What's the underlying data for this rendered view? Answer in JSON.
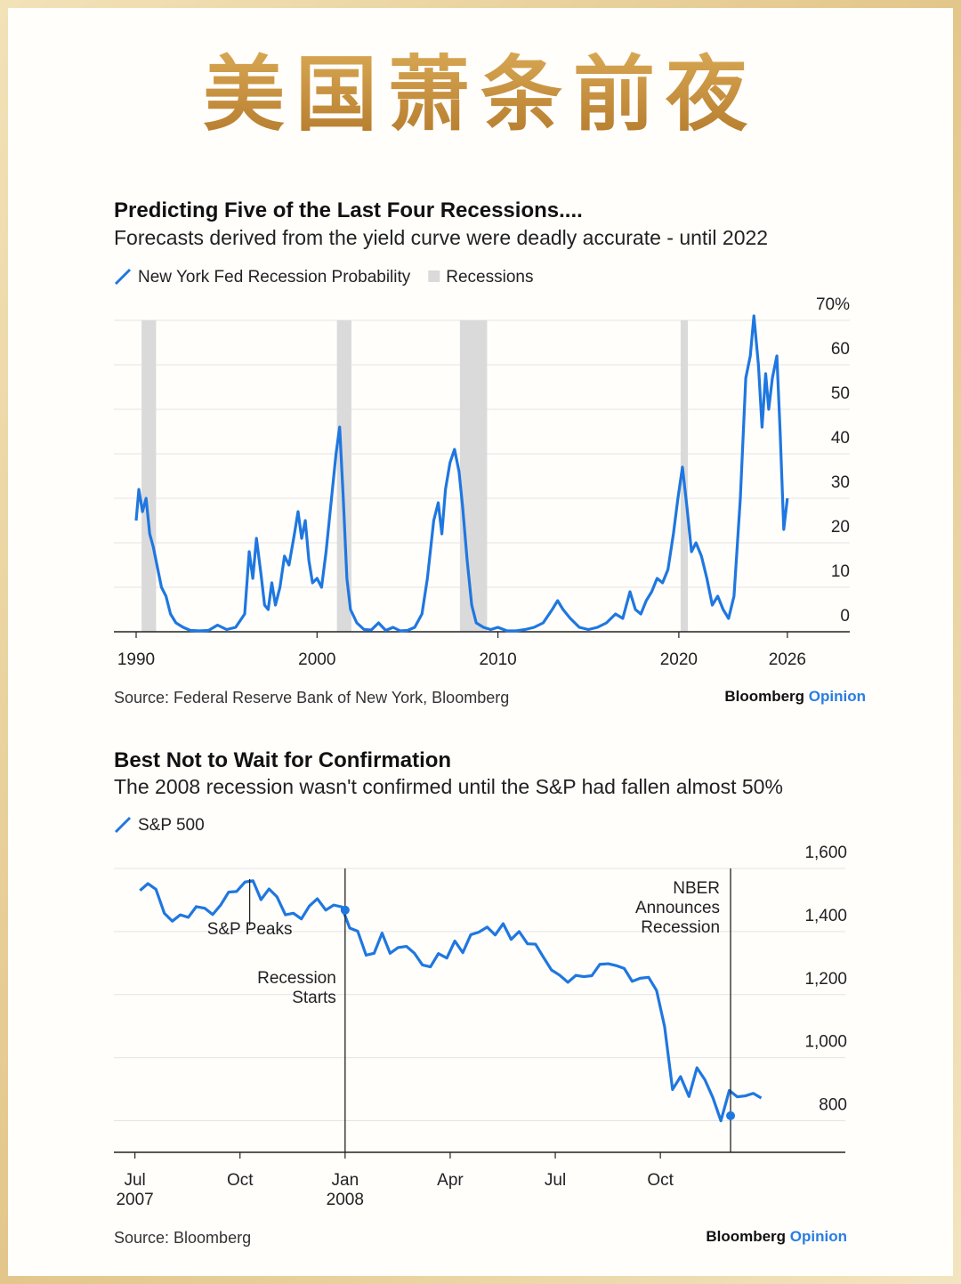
{
  "title": "美国萧条前夜",
  "chart_data": [
    {
      "type": "line",
      "title": "Predicting Five of the Last Four Recessions....",
      "subtitle": "Forecasts derived from the yield curve were deadly accurate - until 2022",
      "x": [
        1990.0,
        1990.15,
        1990.35,
        1990.55,
        1990.75,
        1990.95,
        1991.15,
        1991.4,
        1991.65,
        1991.9,
        1992.2,
        1992.6,
        1993.0,
        1993.5,
        1994.0,
        1994.5,
        1995.0,
        1995.5,
        1996.0,
        1996.25,
        1996.45,
        1996.65,
        1996.9,
        1997.1,
        1997.3,
        1997.5,
        1997.7,
        1997.95,
        1998.2,
        1998.45,
        1998.75,
        1998.95,
        1999.15,
        1999.35,
        1999.55,
        1999.75,
        2000.0,
        2000.25,
        2000.5,
        2000.8,
        2001.05,
        2001.25,
        2001.45,
        2001.65,
        2001.85,
        2002.2,
        2002.6,
        2003.0,
        2003.4,
        2003.8,
        2004.2,
        2004.6,
        2005.0,
        2005.4,
        2005.8,
        2006.1,
        2006.45,
        2006.7,
        2006.9,
        2007.1,
        2007.35,
        2007.6,
        2007.85,
        2008.05,
        2008.3,
        2008.55,
        2008.8,
        2009.2,
        2009.6,
        2010.0,
        2010.5,
        2011.0,
        2011.5,
        2012.0,
        2012.5,
        2013.0,
        2013.3,
        2013.6,
        2014.0,
        2014.5,
        2015.0,
        2015.5,
        2016.0,
        2016.5,
        2016.9,
        2017.3,
        2017.6,
        2017.9,
        2018.2,
        2018.5,
        2018.8,
        2019.1,
        2019.4,
        2019.7,
        2019.95,
        2020.2,
        2020.45,
        2020.7,
        2020.95,
        2021.25,
        2021.55,
        2021.85,
        2022.15,
        2022.45,
        2022.75,
        2023.05,
        2023.4,
        2023.7,
        2023.95,
        2024.15,
        2024.4,
        2024.6,
        2024.8,
        2024.97,
        2025.17,
        2025.42,
        2025.6,
        2025.8,
        2026.0
      ],
      "series": [
        {
          "name": "New York Fed Recession Probability",
          "color": "#1f77e0",
          "values": [
            25,
            32,
            27,
            30,
            22,
            19,
            15,
            10,
            8,
            4,
            2,
            1,
            0.3,
            0.2,
            0.3,
            1.5,
            0.5,
            1,
            4,
            18,
            12,
            21,
            13,
            6,
            5,
            11,
            6,
            10,
            17,
            15,
            22,
            27,
            21,
            25,
            16,
            11,
            12,
            10,
            18,
            30,
            40,
            46,
            30,
            12,
            5,
            2,
            0.5,
            0.4,
            2,
            0.3,
            1,
            0.2,
            0.3,
            1,
            4,
            12,
            25,
            29,
            22,
            32,
            38,
            41,
            36,
            28,
            16,
            6,
            2,
            1,
            0.5,
            1,
            0.2,
            0.2,
            0.5,
            1,
            2,
            5,
            7,
            5,
            3,
            1,
            0.5,
            1,
            2,
            4,
            3,
            9,
            5,
            4,
            7,
            9,
            12,
            11,
            14,
            22,
            30,
            37,
            28,
            18,
            20,
            17,
            12,
            6,
            8,
            5,
            3,
            8,
            30,
            57,
            62,
            71,
            60,
            46,
            58,
            50,
            57,
            62,
            45,
            23,
            30
          ]
        }
      ],
      "shaded_ranges": {
        "name": "Recessions",
        "color": "#dadada",
        "ranges": [
          [
            1990.3,
            1991.1
          ],
          [
            2001.1,
            2001.9
          ],
          [
            2007.9,
            2009.4
          ],
          [
            2020.1,
            2020.5
          ]
        ]
      },
      "xlim": [
        1988.77,
        2029.45
      ],
      "xticks": [
        1990,
        2000,
        2010,
        2020,
        2026
      ],
      "ylim": [
        0,
        70
      ],
      "yticks": [
        0,
        10,
        20,
        30,
        40,
        50,
        60,
        {
          "value": 70,
          "label": "70%"
        }
      ],
      "grid": true,
      "source": "Source: Federal Reserve Bank of New York, Bloomberg",
      "brand": {
        "name": "Bloomberg",
        "section": "Opinion"
      }
    },
    {
      "type": "line",
      "title": "Best Not to Wait for Confirmation",
      "subtitle": "The 2008 recession wasn't confirmed until the S&P had fallen almost 50%",
      "x": [
        2007.512,
        2007.531,
        2007.55,
        2007.57,
        2007.589,
        2007.608,
        2007.627,
        2007.646,
        2007.666,
        2007.685,
        2007.704,
        2007.723,
        2007.742,
        2007.762,
        2007.781,
        2007.8,
        2007.819,
        2007.838,
        2007.858,
        2007.877,
        2007.896,
        2007.915,
        2007.934,
        2007.954,
        2007.973,
        2007.992,
        2008.011,
        2008.03,
        2008.05,
        2008.069,
        2008.088,
        2008.107,
        2008.126,
        2008.146,
        2008.165,
        2008.184,
        2008.203,
        2008.222,
        2008.242,
        2008.261,
        2008.28,
        2008.299,
        2008.318,
        2008.338,
        2008.357,
        2008.376,
        2008.395,
        2008.414,
        2008.434,
        2008.453,
        2008.472,
        2008.491,
        2008.51,
        2008.53,
        2008.549,
        2008.568,
        2008.587,
        2008.606,
        2008.626,
        2008.645,
        2008.664,
        2008.683,
        2008.702,
        2008.722,
        2008.741,
        2008.76,
        2008.779,
        2008.798,
        2008.818,
        2008.837,
        2008.856,
        2008.875,
        2008.894,
        2008.914,
        2008.933,
        2008.952,
        2008.971,
        2008.99
      ],
      "series": [
        {
          "name": "S&P 500",
          "color": "#1f77e0",
          "values": [
            1530,
            1552,
            1534,
            1458,
            1433,
            1453,
            1445,
            1479,
            1474,
            1454,
            1484,
            1525,
            1527,
            1557,
            1561,
            1501,
            1535,
            1510,
            1453,
            1458,
            1440,
            1481,
            1504,
            1468,
            1484,
            1478,
            1411,
            1401,
            1325,
            1331,
            1395,
            1331,
            1349,
            1353,
            1331,
            1294,
            1288,
            1330,
            1316,
            1370,
            1333,
            1390,
            1398,
            1414,
            1389,
            1425,
            1375,
            1400,
            1361,
            1360,
            1318,
            1278,
            1262,
            1239,
            1261,
            1257,
            1260,
            1296,
            1298,
            1292,
            1283,
            1242,
            1252,
            1255,
            1213,
            1099,
            899,
            940,
            877,
            968,
            930,
            873,
            800,
            896,
            876,
            879,
            887,
            872
          ]
        }
      ],
      "xlim": [
        2007.45,
        2009.19
      ],
      "xticks": [
        {
          "value": 2007.5,
          "label": "Jul",
          "year": "2007"
        },
        {
          "value": 2007.75,
          "label": "Oct"
        },
        {
          "value": 2008.0,
          "label": "Jan",
          "year": "2008"
        },
        {
          "value": 2008.25,
          "label": "Apr"
        },
        {
          "value": 2008.5,
          "label": "Jul"
        },
        {
          "value": 2008.75,
          "label": "Oct"
        }
      ],
      "ylim": [
        700,
        1600
      ],
      "yticks": [
        800,
        {
          "value": 1000,
          "label": "1,000"
        },
        {
          "value": 1200,
          "label": "1,200"
        },
        {
          "value": 1400,
          "label": "1,400"
        },
        {
          "value": 1600,
          "label": "1,600"
        }
      ],
      "grid": true,
      "annotations": [
        {
          "label": [
            "S&P Peaks"
          ],
          "x": 2007.773
        },
        {
          "label": [
            "Recession",
            "Starts"
          ],
          "x": 2008.0,
          "value": 1468
        },
        {
          "label": [
            "NBER",
            "Announces",
            "Recession"
          ],
          "x": 2008.917,
          "value": 816
        }
      ],
      "source": "Source: Bloomberg",
      "brand": {
        "name": "Bloomberg",
        "section": "Opinion"
      }
    }
  ]
}
